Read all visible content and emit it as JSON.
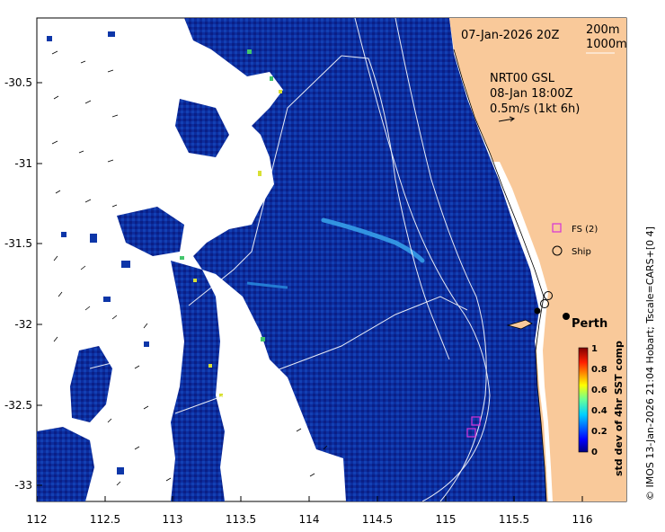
{
  "map": {
    "date_label": "07-Jan-2026 20Z",
    "isobaths": [
      "200m",
      "1000m"
    ],
    "current_product": "NRT00 GSL",
    "current_time": "08-Jan 18:00Z",
    "current_scale": "0.5m/s (1kt 6h)",
    "place_label": "Perth",
    "legend": {
      "fs_label": "FS (2)",
      "ship_label": "Ship"
    },
    "colorbar": {
      "title": "std dev of 4hr SST comp",
      "ticks": [
        "1",
        "0.8",
        "0.6",
        "0.4",
        "0.2",
        "0"
      ]
    },
    "credit": "© IMOS 13-Jan-2026 21:04 Hobart; Tscale=CARS+[0 4]",
    "x_ticks": [
      "112",
      "112.5",
      "113",
      "113.5",
      "114",
      "114.5",
      "115",
      "115.5",
      "116"
    ],
    "y_ticks": [
      "-30.5",
      "-31",
      "-31.5",
      "-32",
      "-32.5",
      "-33"
    ],
    "colors": {
      "land": "#f9c99a",
      "ocean_low": "#0b2a9c",
      "ocean_mid": "#1e78d8",
      "high": "#d8e034",
      "fs_marker": "#d633d6"
    }
  }
}
